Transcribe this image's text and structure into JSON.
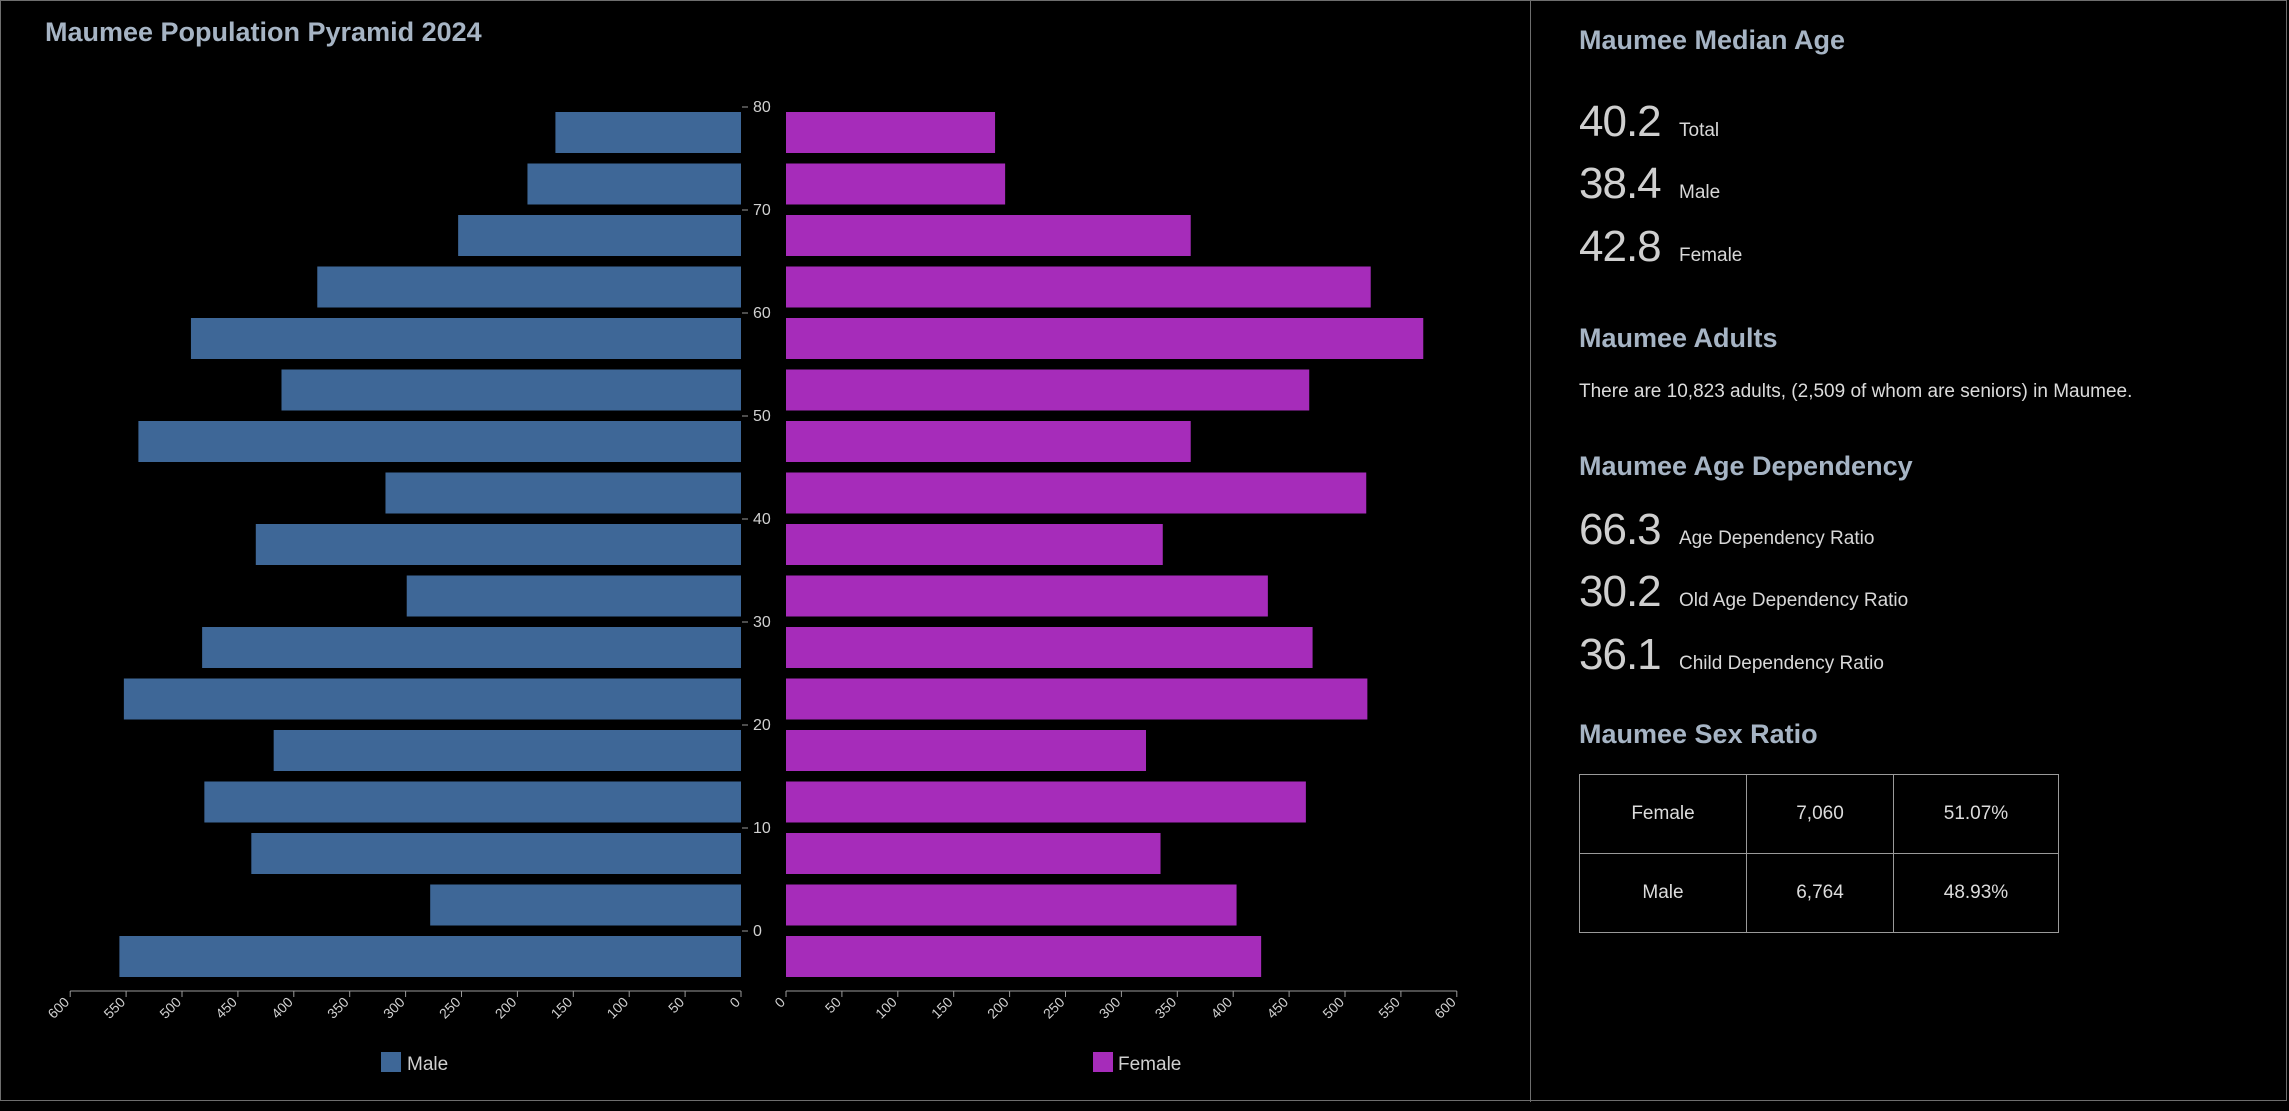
{
  "chart_data": {
    "type": "bar",
    "title": "Maumee Population Pyramid 2024",
    "age_labels": [
      "80",
      "70",
      "60",
      "50",
      "40",
      "30",
      "20",
      "10",
      "0"
    ],
    "x_ticks": [
      0,
      50,
      100,
      150,
      200,
      250,
      300,
      350,
      400,
      450,
      500,
      550,
      600
    ],
    "xlim": [
      0,
      600
    ],
    "series": [
      {
        "name": "Male",
        "color": "#3e6797",
        "values": [
          166,
          191,
          253,
          379,
          492,
          411,
          539,
          318,
          434,
          299,
          482,
          552,
          418,
          480,
          438,
          278,
          556
        ]
      },
      {
        "name": "Female",
        "color": "#a62cba",
        "values": [
          187,
          196,
          362,
          523,
          570,
          468,
          362,
          519,
          337,
          431,
          471,
          520,
          322,
          465,
          335,
          403,
          425
        ]
      }
    ],
    "legend": [
      "Male",
      "Female"
    ]
  },
  "median_age": {
    "title": "Maumee Median Age",
    "stats": [
      {
        "value": "40.2",
        "label": "Total"
      },
      {
        "value": "38.4",
        "label": "Male"
      },
      {
        "value": "42.8",
        "label": "Female"
      }
    ]
  },
  "adults": {
    "title": "Maumee Adults",
    "text": "There are 10,823 adults, (2,509 of whom are seniors) in Maumee."
  },
  "dependency": {
    "title": "Maumee Age Dependency",
    "stats": [
      {
        "value": "66.3",
        "label": "Age Dependency Ratio"
      },
      {
        "value": "30.2",
        "label": "Old Age Dependency Ratio"
      },
      {
        "value": "36.1",
        "label": "Child Dependency Ratio"
      }
    ]
  },
  "sex_ratio": {
    "title": "Maumee Sex Ratio",
    "rows": [
      {
        "sex": "Female",
        "count": "7,060",
        "percent": "51.07%"
      },
      {
        "sex": "Male",
        "count": "6,764",
        "percent": "48.93%"
      }
    ]
  }
}
